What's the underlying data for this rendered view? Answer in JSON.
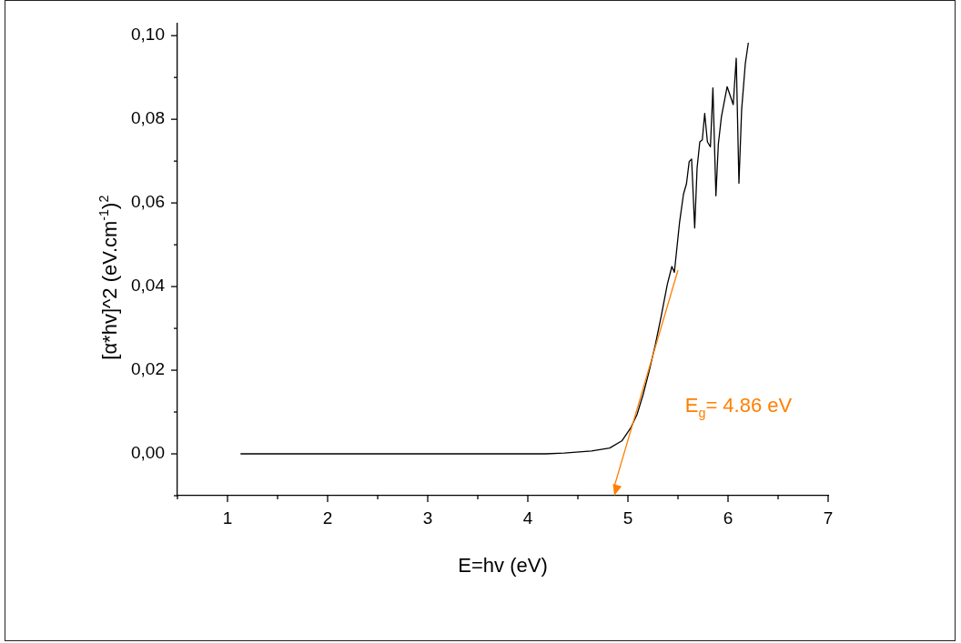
{
  "chart_data": {
    "type": "line",
    "xlabel": "E=hv (eV)",
    "ylabel": "[α*hv]^2 (eV.cm$^{-1}$)$^{2}$",
    "xlim": [
      0.5,
      7
    ],
    "ylim": [
      -0.01,
      0.103
    ],
    "xticks": [
      {
        "value": 0.5,
        "label": null
      },
      1,
      {
        "value": 1.5,
        "label": null
      },
      2,
      {
        "value": 2.5,
        "label": null
      },
      3,
      {
        "value": 3.5,
        "label": null
      },
      4,
      {
        "value": 4.5,
        "label": null
      },
      5,
      {
        "value": 5.5,
        "label": null
      },
      6,
      {
        "value": 6.5,
        "label": null
      },
      7
    ],
    "yticks": [
      {
        "value": -0.01,
        "label": null
      },
      {
        "value": 0,
        "label": "0,00"
      },
      {
        "value": 0.01,
        "label": null
      },
      {
        "value": 0.02,
        "label": "0,02"
      },
      {
        "value": 0.03,
        "label": null
      },
      {
        "value": 0.04,
        "label": "0,04"
      },
      {
        "value": 0.05,
        "label": null
      },
      {
        "value": 0.06,
        "label": "0,06"
      },
      {
        "value": 0.07,
        "label": null
      },
      {
        "value": 0.08,
        "label": "0,08"
      },
      {
        "value": 0.09,
        "label": null
      },
      {
        "value": 0.1,
        "label": "0,10"
      }
    ],
    "grid": false,
    "legend": false,
    "marker": "none",
    "line_style": "solid",
    "series": [
      {
        "color": "#000000",
        "x": [
          1.13,
          2,
          3,
          4,
          4.18,
          4.364,
          4.636,
          4.818,
          4.939,
          5.03,
          5.091,
          5.152,
          5.212,
          5.273,
          5.333,
          5.394,
          5.439,
          5.464,
          5.515,
          5.555,
          5.585,
          5.612,
          5.636,
          5.667,
          5.691,
          5.718,
          5.743,
          5.767,
          5.794,
          5.824,
          5.849,
          5.879,
          5.903,
          5.934,
          5.991,
          6.052,
          6.082,
          6.109,
          6.136,
          6.173,
          6.203
        ],
        "values": [
          0,
          0,
          0,
          0,
          0,
          0.0002,
          0.0007,
          0.0014,
          0.0031,
          0.0063,
          0.0094,
          0.0142,
          0.0198,
          0.026,
          0.033,
          0.0406,
          0.0448,
          0.0434,
          0.0552,
          0.0621,
          0.0646,
          0.0699,
          0.0705,
          0.054,
          0.0684,
          0.0746,
          0.0751,
          0.0814,
          0.0746,
          0.0734,
          0.0875,
          0.0617,
          0.074,
          0.0806,
          0.0878,
          0.0835,
          0.0946,
          0.0647,
          0.0823,
          0.0934,
          0.0983
        ]
      }
    ],
    "annotations": [
      "E$_{g}$= 4.86 eV"
    ]
  }
}
